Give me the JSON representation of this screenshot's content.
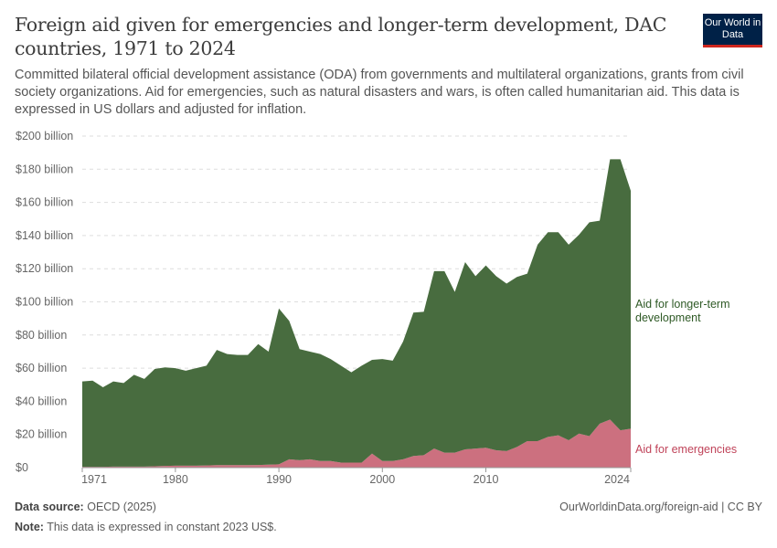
{
  "title": "Foreign aid given for emergencies and longer-term development, DAC countries, 1971 to 2024",
  "subtitle": "Committed bilateral official development assistance (ODA) from governments and multilateral organizations, grants from civil society organizations. Aid for emergencies, such as natural disasters and wars, is often called humanitarian aid. This data is expressed in US dollars and adjusted for inflation.",
  "logo": "Our World in Data",
  "footer": {
    "source_label": "Data source:",
    "source": "OECD (2025)",
    "url": "OurWorldinData.org/foreign-aid | CC BY",
    "note_label": "Note:",
    "note": "This data is expressed in constant 2023 US$."
  },
  "chart_data": {
    "type": "area",
    "stacked": true,
    "x": [
      1971,
      1972,
      1973,
      1974,
      1975,
      1976,
      1977,
      1978,
      1979,
      1980,
      1981,
      1982,
      1983,
      1984,
      1985,
      1986,
      1987,
      1988,
      1989,
      1990,
      1991,
      1992,
      1993,
      1994,
      1995,
      1996,
      1997,
      1998,
      1999,
      2000,
      2001,
      2002,
      2003,
      2004,
      2005,
      2006,
      2007,
      2008,
      2009,
      2010,
      2011,
      2012,
      2013,
      2014,
      2015,
      2016,
      2017,
      2018,
      2019,
      2020,
      2021,
      2022,
      2023,
      2024
    ],
    "series": [
      {
        "name": "Aid for emergencies",
        "color": "#cc707f",
        "values": [
          0.5,
          0.5,
          0.5,
          0.6,
          0.6,
          0.6,
          0.6,
          0.8,
          1,
          1.2,
          1.2,
          1.2,
          1.3,
          1.5,
          1.5,
          1.5,
          1.5,
          1.6,
          1.8,
          2,
          5,
          4.5,
          5,
          4,
          4,
          3,
          3,
          3,
          8.5,
          4,
          4,
          5,
          7,
          7.5,
          11.5,
          9,
          9,
          11,
          11.5,
          12,
          10.5,
          10,
          12.5,
          16,
          16,
          18.5,
          19.5,
          16.5,
          20.5,
          19,
          26.5,
          29,
          22.5,
          23.5
        ]
      },
      {
        "name": "Aid for longer-term development",
        "color": "#486c3f",
        "values": [
          51.5,
          52,
          48,
          51.4,
          50.4,
          55.4,
          52.9,
          58.7,
          59.5,
          58.8,
          57.3,
          58.8,
          60.2,
          69.5,
          67,
          66.5,
          66.5,
          72.9,
          68.2,
          94,
          83.5,
          67,
          65,
          64.5,
          61.5,
          58.5,
          54.5,
          58.5,
          56.5,
          61.5,
          60.5,
          71,
          86.5,
          86.5,
          107,
          109.5,
          97,
          113,
          104,
          110,
          105,
          101,
          102.5,
          101,
          118.5,
          123.5,
          122.5,
          118,
          120,
          129,
          122.5,
          157,
          163.5,
          143.5
        ]
      }
    ],
    "legend_labels": [
      "Aid for longer-term\ndevelopment",
      "Aid for emergencies"
    ],
    "yticks": [
      0,
      20,
      40,
      60,
      80,
      100,
      120,
      140,
      160,
      180,
      200
    ],
    "ytick_labels": [
      "$0",
      "$20 billion",
      "$40 billion",
      "$60 billion",
      "$80 billion",
      "$100 billion",
      "$120 billion",
      "$140 billion",
      "$160 billion",
      "$180 billion",
      "$200 billion"
    ],
    "xticks": [
      1971,
      1980,
      1990,
      2000,
      2010,
      2024
    ],
    "xtick_labels": [
      "1971",
      "1980",
      "1990",
      "2000",
      "2010",
      "2024"
    ],
    "ylim": [
      0,
      200
    ],
    "grid": true,
    "legend": "right, inline labels"
  }
}
